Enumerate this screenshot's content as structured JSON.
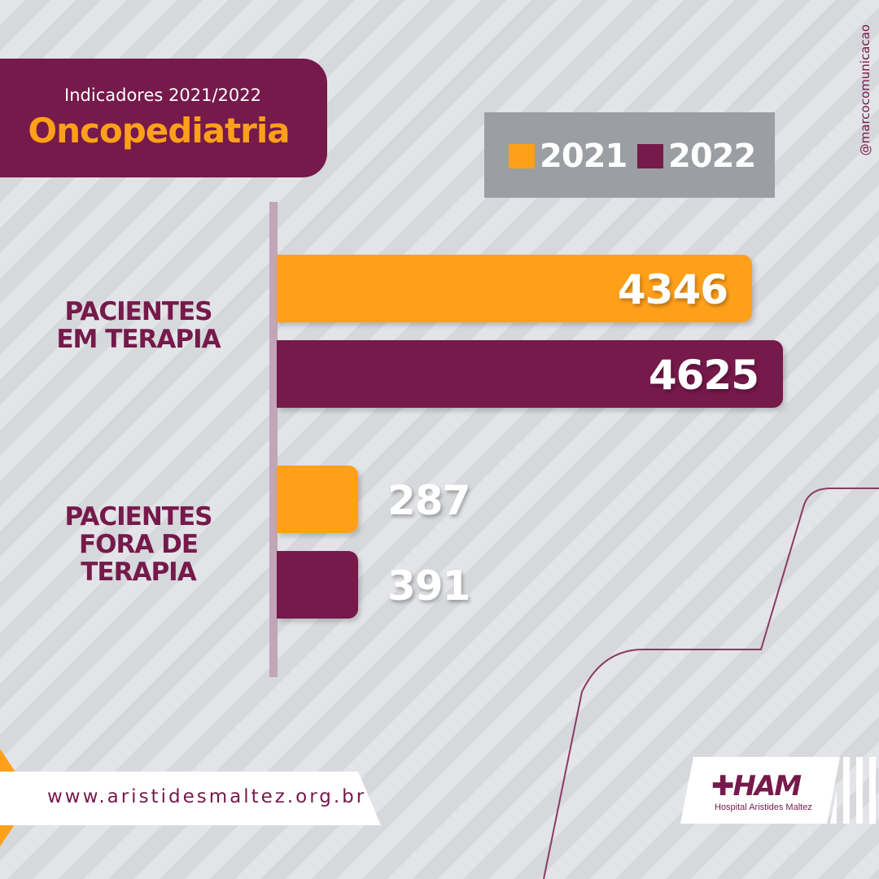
{
  "header": {
    "subtitle": "Indicadores 2021/2022",
    "title": "Oncopediatria"
  },
  "social_handle": "@marcocomunicacao",
  "colors": {
    "primary": "#76194b",
    "accent": "#ffa01a",
    "legend_bg": "#9b9ea3"
  },
  "legend": [
    {
      "label": "2021",
      "color": "#ffa01a"
    },
    {
      "label": "2022",
      "color": "#76194b"
    }
  ],
  "chart_data": {
    "type": "bar",
    "orientation": "horizontal",
    "title": "Oncopediatria",
    "categories": [
      "PACIENTES\nEM TERAPIA",
      "PACIENTES\nFORA DE\nTERAPIA"
    ],
    "series": [
      {
        "name": "2021",
        "color": "#ffa01a",
        "values": [
          4346,
          287
        ]
      },
      {
        "name": "2022",
        "color": "#76194b",
        "values": [
          4625,
          391
        ]
      }
    ],
    "value_labels": [
      [
        "4346",
        "287"
      ],
      [
        "4625",
        "391"
      ]
    ]
  },
  "footer": {
    "url": "www.aristidesmaltez.org.br",
    "logo_mark": "HAM",
    "logo_text": "Hospital Aristides Maltez"
  }
}
